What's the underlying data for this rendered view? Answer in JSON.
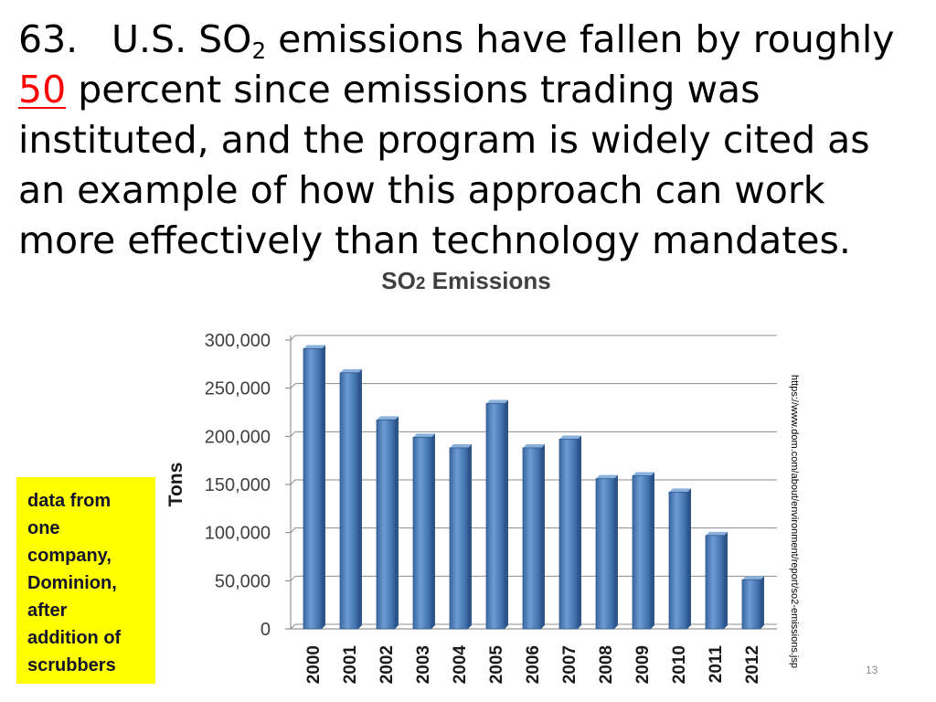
{
  "slide": {
    "heading": {
      "number": "63.",
      "line1_a": "U.S. SO",
      "line1_sub": "2",
      "line1_b": " emissions have fallen by roughly",
      "highlight": "50",
      "line2": " percent since emissions trading was",
      "line3": "instituted, and the program is widely cited as",
      "line4": "an example of how this approach can work",
      "line5": "more effectively than technology mandates."
    },
    "note": "data from one company, Dominion, after addition of scrubbers",
    "source_url": "https://www.dom.com/about/environment/report/so2-emissions.jsp",
    "page_number": "13"
  },
  "colors": {
    "highlight": "#FF0000",
    "note_background": "#FFFF00",
    "bar": "#4F81BD"
  },
  "chart_data": {
    "type": "bar",
    "title": "SO2 Emissions",
    "ylabel": "Tons",
    "categories": [
      "2000",
      "2001",
      "2002",
      "2003",
      "2004",
      "2005",
      "2006",
      "2007",
      "2008",
      "2009",
      "2010",
      "2011",
      "2012"
    ],
    "values": [
      291000,
      266000,
      217000,
      199000,
      188000,
      234000,
      188000,
      197000,
      156000,
      159000,
      142000,
      97000,
      51000
    ],
    "ylim": [
      0,
      300000
    ],
    "ytick_labels": [
      "0",
      "50,000",
      "100,000",
      "150,000",
      "200,000",
      "250,000",
      "300,000"
    ],
    "grid": true,
    "legend": "none",
    "three_d": true
  }
}
